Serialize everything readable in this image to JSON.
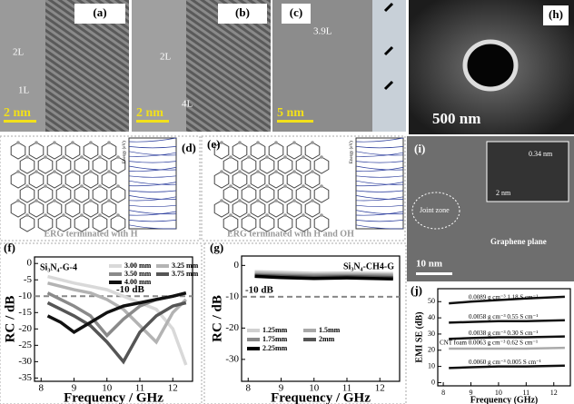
{
  "panels": {
    "a": {
      "label": "(a)",
      "notes": [
        "2L",
        "1L"
      ],
      "scale": "2 nm"
    },
    "b": {
      "label": "(b)",
      "notes": [
        "2L",
        "4L"
      ],
      "scale": "2 nm"
    },
    "c": {
      "label": "(c)",
      "notes": [
        "3.9L"
      ],
      "scale": "5 nm"
    },
    "h": {
      "label": "(h)",
      "scale": "500 nm"
    },
    "d": {
      "label": "(d)",
      "caption": "ERG terminated with H",
      "axis": "Energy (eV)"
    },
    "e": {
      "label": "(e)",
      "caption": "ERG terminated with H and OH",
      "axis": "Energy (eV)"
    },
    "i": {
      "label": "(i)",
      "notes": [
        "Joint zone",
        "Graphene plane",
        "0.34 nm"
      ],
      "scale": "10 nm",
      "inset_scale": "2 nm"
    }
  },
  "chart_data": [
    {
      "type": "line",
      "label": "(f)",
      "title": "Si₃N₄-G-4",
      "xlabel": "Frequency / GHz",
      "ylabel": "RC / dB",
      "x": [
        8.2,
        8.6,
        9,
        9.5,
        10,
        10.5,
        11,
        11.5,
        12,
        12.4
      ],
      "series": [
        {
          "name": "3.00 mm",
          "color": "#d9d9d9",
          "values": [
            -4,
            -5,
            -6,
            -7,
            -8,
            -10,
            -12,
            -14,
            -20,
            -31
          ]
        },
        {
          "name": "3.25 mm",
          "color": "#b3b3b3",
          "values": [
            -6,
            -7,
            -8,
            -9,
            -11,
            -14,
            -19,
            -24,
            -15,
            -11
          ]
        },
        {
          "name": "3.50 mm",
          "color": "#8a8a8a",
          "values": [
            -9,
            -11,
            -13,
            -16,
            -22,
            -17,
            -13,
            -11,
            -10,
            -9
          ]
        },
        {
          "name": "3.75 mm",
          "color": "#555555",
          "values": [
            -12,
            -14,
            -16,
            -19,
            -24,
            -30,
            -21,
            -16,
            -13,
            -12
          ]
        },
        {
          "name": "4.00 mm",
          "color": "#111111",
          "values": [
            -16,
            -18,
            -21,
            -18,
            -15,
            -13,
            -12,
            -11,
            -10,
            -9
          ]
        }
      ],
      "ref_line": {
        "value": -10,
        "label": "-10 dB"
      },
      "xlim": [
        7.8,
        12.6
      ],
      "xticks": [
        8,
        9,
        10,
        11,
        12
      ],
      "ylim": [
        -36,
        2
      ],
      "yticks": [
        0,
        -5,
        -10,
        -15,
        -20,
        -25,
        -30,
        -35
      ],
      "legend": "upper right"
    },
    {
      "type": "line",
      "label": "(g)",
      "title": "Si₃N₄-CH4-G",
      "xlabel": "Frequency / GHz",
      "ylabel": "RC / dB",
      "x": [
        8.2,
        9,
        10,
        11,
        12.4
      ],
      "series": [
        {
          "name": "1.25mm",
          "color": "#d0d0d0",
          "values": [
            -2,
            -2.2,
            -2.5,
            -2.4,
            -2.6
          ]
        },
        {
          "name": "1.5mm",
          "color": "#a8a8a8",
          "values": [
            -2.5,
            -2.8,
            -3,
            -2.9,
            -3.1
          ]
        },
        {
          "name": "1.75mm",
          "color": "#888888",
          "values": [
            -3,
            -3.2,
            -3.4,
            -3.3,
            -3.5
          ]
        },
        {
          "name": "2mm",
          "color": "#555555",
          "values": [
            -3.2,
            -3.5,
            -3.8,
            -3.6,
            -3.9
          ]
        },
        {
          "name": "2.25mm",
          "color": "#000000",
          "values": [
            -3.5,
            -3.9,
            -4.2,
            -4,
            -4.3
          ]
        }
      ],
      "ref_line": {
        "value": -10,
        "label": "-10 dB"
      },
      "xlim": [
        7.8,
        12.6
      ],
      "xticks": [
        8,
        9,
        10,
        11,
        12
      ],
      "ylim": [
        -37,
        3
      ],
      "yticks": [
        0,
        -10,
        -20,
        -30
      ],
      "legend": "lower left"
    },
    {
      "type": "line",
      "label": "(j)",
      "xlabel": "Frequency (GHz)",
      "ylabel": "EMI SE (dB)",
      "x": [
        8.2,
        9,
        10,
        11,
        12.4
      ],
      "series": [
        {
          "name": "0.0089 g cm⁻³ 1.18 S cm⁻¹",
          "color": "#111111",
          "values": [
            49,
            50,
            51,
            52,
            53
          ]
        },
        {
          "name": "0.0058 g cm⁻³ 0.55 S cm⁻¹",
          "color": "#111111",
          "values": [
            37,
            37.5,
            38,
            38,
            38.5
          ]
        },
        {
          "name": "0.0038 g cm⁻³ 0.30 S cm⁻¹",
          "color": "#111111",
          "values": [
            27,
            27.5,
            28,
            28,
            28.5
          ]
        },
        {
          "name": "CNT foam 0.0063 g cm⁻³ 0.62 S cm⁻¹",
          "color": "#aaaaaa",
          "values": [
            21,
            21,
            21,
            21,
            21.5
          ]
        },
        {
          "name": "0.0060 g cm⁻³ 0.005 S cm⁻¹",
          "color": "#111111",
          "values": [
            9,
            9.5,
            10,
            10,
            10.5
          ]
        }
      ],
      "xlim": [
        7.8,
        12.6
      ],
      "xticks": [
        8,
        9,
        10,
        11,
        12
      ],
      "ylim": [
        -2,
        58
      ],
      "yticks": [
        0,
        10,
        20,
        30,
        40,
        50
      ],
      "legend": "inline"
    }
  ]
}
